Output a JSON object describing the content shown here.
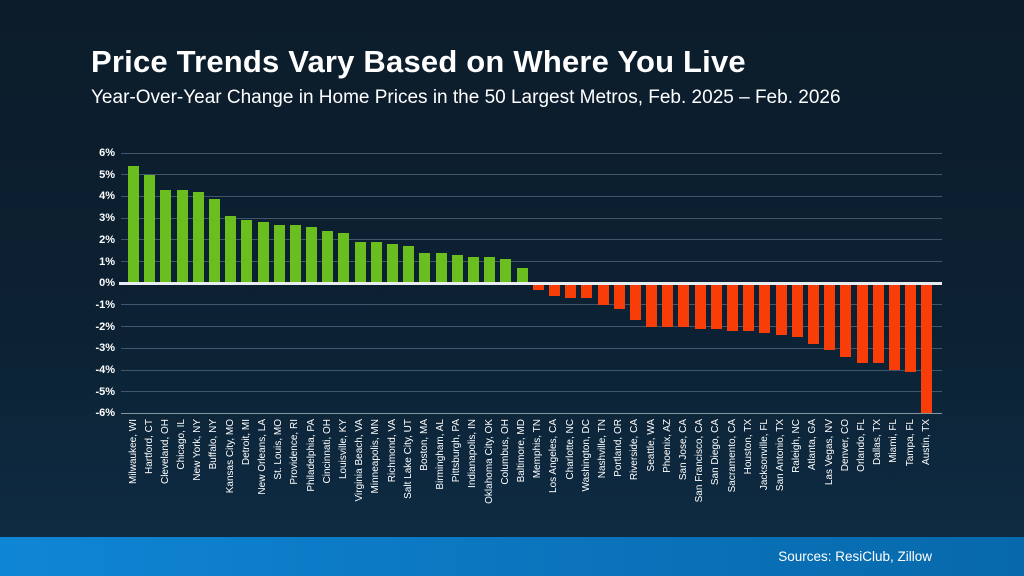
{
  "title": "Price Trends Vary Based on Where You Live",
  "subtitle": "Year-Over-Year Change in Home Prices in the 50 Largest Metros, Feb. 2025 – Feb. 2026",
  "source": "Sources: ResiClub, Zillow",
  "colors": {
    "positive": "#6abf1f",
    "negative": "#f93d08",
    "background_top": "#0c1c2a",
    "background_bottom": "#0e2d45",
    "footer_left": "#0f86d5",
    "footer_right": "#0769ab",
    "gridline": "#41566b",
    "zero_line": "#e7edf2",
    "text": "#ffffff"
  },
  "chart_data": {
    "type": "bar",
    "title": "Price Trends Vary Based on Where You Live",
    "subtitle": "Year-Over-Year Change in Home Prices in the 50 Largest Metros, Feb. 2025 – Feb. 2026",
    "xlabel": "",
    "ylabel": "",
    "ylim": [
      -6,
      6
    ],
    "grid": true,
    "legend": false,
    "ytick_labels": [
      "6%",
      "5%",
      "4%",
      "3%",
      "2%",
      "1%",
      "0%",
      "-1%",
      "-2%",
      "-3%",
      "-4%",
      "-5%",
      "-6%"
    ],
    "categories": [
      "Milwaukee, WI",
      "Hartford, CT",
      "Cleveland, OH",
      "Chicago, IL",
      "New York, NY",
      "Buffalo, NY",
      "Kansas City, MO",
      "Detroit, MI",
      "New Orleans, LA",
      "St. Louis, MO",
      "Providence, RI",
      "Philadelphia, PA",
      "Cincinnati, OH",
      "Louisville, KY",
      "Virginia Beach, VA",
      "Minneapolis, MN",
      "Richmond, VA",
      "Salt Lake City, UT",
      "Boston, MA",
      "Birmingham, AL",
      "Pittsburgh, PA",
      "Indianapolis, IN",
      "Oklahoma City, OK",
      "Columbus, OH",
      "Baltimore, MD",
      "Memphis, TN",
      "Los Angeles, CA",
      "Charlotte, NC",
      "Washington, DC",
      "Nashville, TN",
      "Portland, OR",
      "Riverside, CA",
      "Seattle, WA",
      "Phoenix, AZ",
      "San Jose, CA",
      "San Francisco, CA",
      "San Diego, CA",
      "Sacramento, CA",
      "Houston, TX",
      "Jacksonville, FL",
      "San Antonio, TX",
      "Raleigh, NC",
      "Atlanta, GA",
      "Las Vegas, NV",
      "Denver, CO",
      "Orlando, FL",
      "Dallas, TX",
      "Miami, FL",
      "Tampa, FL",
      "Austin, TX"
    ],
    "values": [
      5.4,
      5.0,
      4.3,
      4.3,
      4.2,
      3.9,
      3.1,
      2.9,
      2.8,
      2.7,
      2.7,
      2.6,
      2.4,
      2.3,
      1.9,
      1.9,
      1.8,
      1.7,
      1.4,
      1.4,
      1.3,
      1.2,
      1.2,
      1.1,
      0.7,
      -0.3,
      -0.6,
      -0.7,
      -0.7,
      -1.0,
      -1.2,
      -1.7,
      -2.0,
      -2.0,
      -2.0,
      -2.1,
      -2.1,
      -2.2,
      -2.2,
      -2.3,
      -2.4,
      -2.5,
      -2.8,
      -3.1,
      -3.4,
      -3.7,
      -3.7,
      -4.0,
      -4.1,
      -6.0
    ],
    "positive_color": "#6abf1f",
    "negative_color": "#f93d08"
  }
}
